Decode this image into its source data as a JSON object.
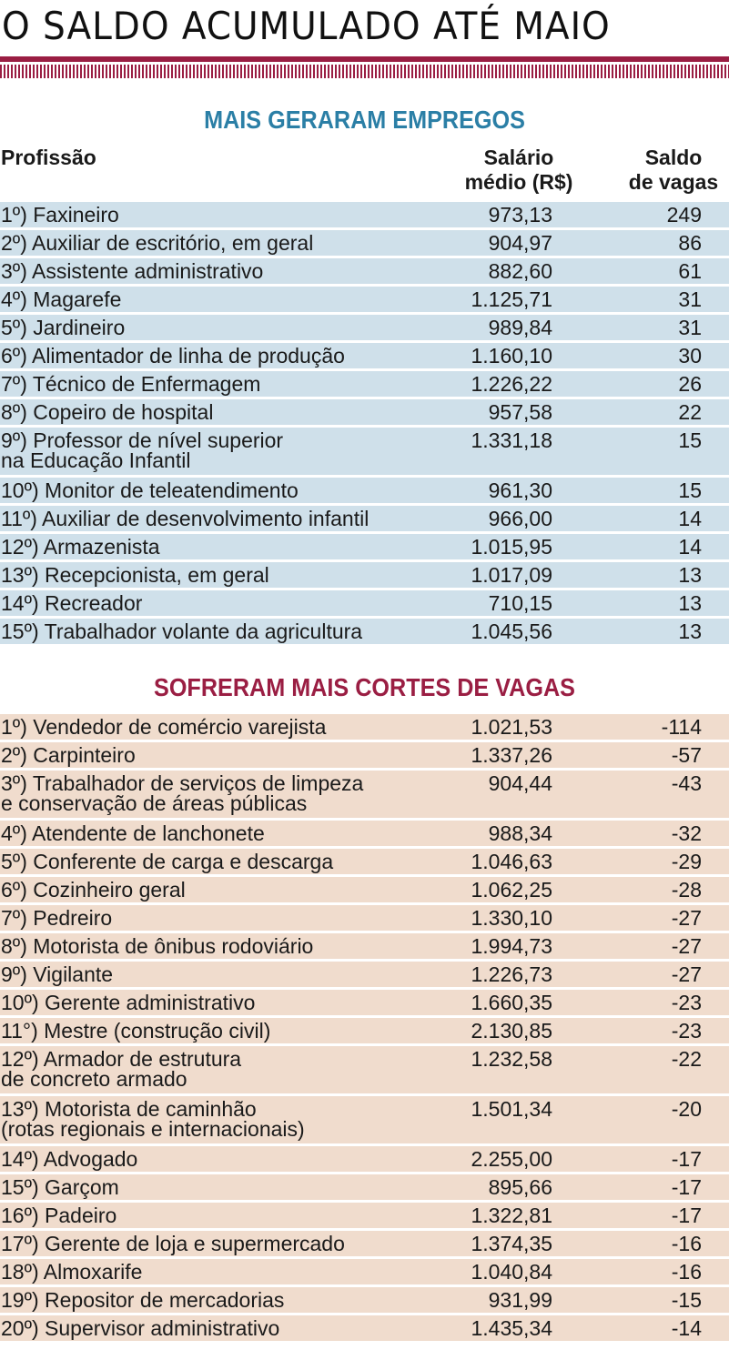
{
  "title": "O SALDO ACUMULADO ATÉ MAIO",
  "colors": {
    "accent": "#9a1e43",
    "blue_title": "#2b7fa6",
    "red_title": "#9a1e43",
    "blue_row": "#cfe0ea",
    "peach_row": "#f0dccd"
  },
  "headers": {
    "profession": "Profissão",
    "salary": [
      "Salário",
      "médio (R$)"
    ],
    "balance": [
      "Saldo",
      "de vagas"
    ]
  },
  "top": {
    "title": "MAIS GERARAM EMPREGOS",
    "rows": [
      {
        "name": [
          "1º) Faxineiro"
        ],
        "salary": "973,13",
        "balance": "249"
      },
      {
        "name": [
          "2º) Auxiliar de escritório, em geral"
        ],
        "salary": "904,97",
        "balance": "86"
      },
      {
        "name": [
          "3º) Assistente administrativo"
        ],
        "salary": "882,60",
        "balance": "61"
      },
      {
        "name": [
          "4º) Magarefe"
        ],
        "salary": "1.125,71",
        "balance": "31"
      },
      {
        "name": [
          "5º) Jardineiro"
        ],
        "salary": "989,84",
        "balance": "31"
      },
      {
        "name": [
          "6º) Alimentador de linha de produção"
        ],
        "salary": "1.160,10",
        "balance": "30"
      },
      {
        "name": [
          "7º) Técnico de Enfermagem"
        ],
        "salary": "1.226,22",
        "balance": "26"
      },
      {
        "name": [
          "8º) Copeiro de hospital"
        ],
        "salary": "957,58",
        "balance": "22"
      },
      {
        "name": [
          "9º) Professor de nível superior",
          "na Educação Infantil"
        ],
        "salary": "1.331,18",
        "balance": "15"
      },
      {
        "name": [
          "10º) Monitor de teleatendimento"
        ],
        "salary": "961,30",
        "balance": "15"
      },
      {
        "name": [
          "11º) Auxiliar de desenvolvimento infantil"
        ],
        "salary": "966,00",
        "balance": "14"
      },
      {
        "name": [
          "12º) Armazenista"
        ],
        "salary": "1.015,95",
        "balance": "14"
      },
      {
        "name": [
          "13º) Recepcionista, em geral"
        ],
        "salary": "1.017,09",
        "balance": "13"
      },
      {
        "name": [
          "14º) Recreador"
        ],
        "salary": "710,15",
        "balance": "13"
      },
      {
        "name": [
          "15º) Trabalhador volante da agricultura"
        ],
        "salary": "1.045,56",
        "balance": "13"
      }
    ]
  },
  "bottom": {
    "title": "SOFRERAM MAIS CORTES DE VAGAS",
    "rows": [
      {
        "name": [
          "1º) Vendedor de comércio varejista"
        ],
        "salary": "1.021,53",
        "balance": "-114"
      },
      {
        "name": [
          "2º) Carpinteiro"
        ],
        "salary": "1.337,26",
        "balance": "-57"
      },
      {
        "name": [
          "3º) Trabalhador de serviços de limpeza",
          "e conservação de áreas públicas"
        ],
        "salary": "904,44",
        "balance": "-43"
      },
      {
        "name": [
          "4º) Atendente de lanchonete"
        ],
        "salary": "988,34",
        "balance": "-32"
      },
      {
        "name": [
          "5º) Conferente de carga e descarga"
        ],
        "salary": "1.046,63",
        "balance": "-29"
      },
      {
        "name": [
          "6º) Cozinheiro geral"
        ],
        "salary": "1.062,25",
        "balance": "-28"
      },
      {
        "name": [
          "7º) Pedreiro"
        ],
        "salary": "1.330,10",
        "balance": "-27"
      },
      {
        "name": [
          "8º) Motorista de ônibus rodoviário"
        ],
        "salary": "1.994,73",
        "balance": "-27"
      },
      {
        "name": [
          "9º) Vigilante"
        ],
        "salary": "1.226,73",
        "balance": "-27"
      },
      {
        "name": [
          "10º) Gerente administrativo"
        ],
        "salary": "1.660,35",
        "balance": "-23"
      },
      {
        "name": [
          "11°) Mestre (construção civil)"
        ],
        "salary": "2.130,85",
        "balance": "-23"
      },
      {
        "name": [
          "12º) Armador de estrutura",
          "de concreto armado"
        ],
        "salary": "1.232,58",
        "balance": "-22"
      },
      {
        "name": [
          "13º) Motorista de caminhão",
          "(rotas regionais e internacionais)"
        ],
        "salary": "1.501,34",
        "balance": "-20"
      },
      {
        "name": [
          "14º) Advogado"
        ],
        "salary": "2.255,00",
        "balance": "-17"
      },
      {
        "name": [
          "15º) Garçom"
        ],
        "salary": "895,66",
        "balance": "-17"
      },
      {
        "name": [
          "16º) Padeiro"
        ],
        "salary": "1.322,81",
        "balance": "-17"
      },
      {
        "name": [
          "17º) Gerente de loja e supermercado"
        ],
        "salary": "1.374,35",
        "balance": "-16"
      },
      {
        "name": [
          "18º) Almoxarife"
        ],
        "salary": "1.040,84",
        "balance": "-16"
      },
      {
        "name": [
          "19º) Repositor de mercadorias"
        ],
        "salary": "931,99",
        "balance": "-15"
      },
      {
        "name": [
          "20º) Supervisor administrativo"
        ],
        "salary": "1.435,34",
        "balance": "-14"
      }
    ]
  }
}
